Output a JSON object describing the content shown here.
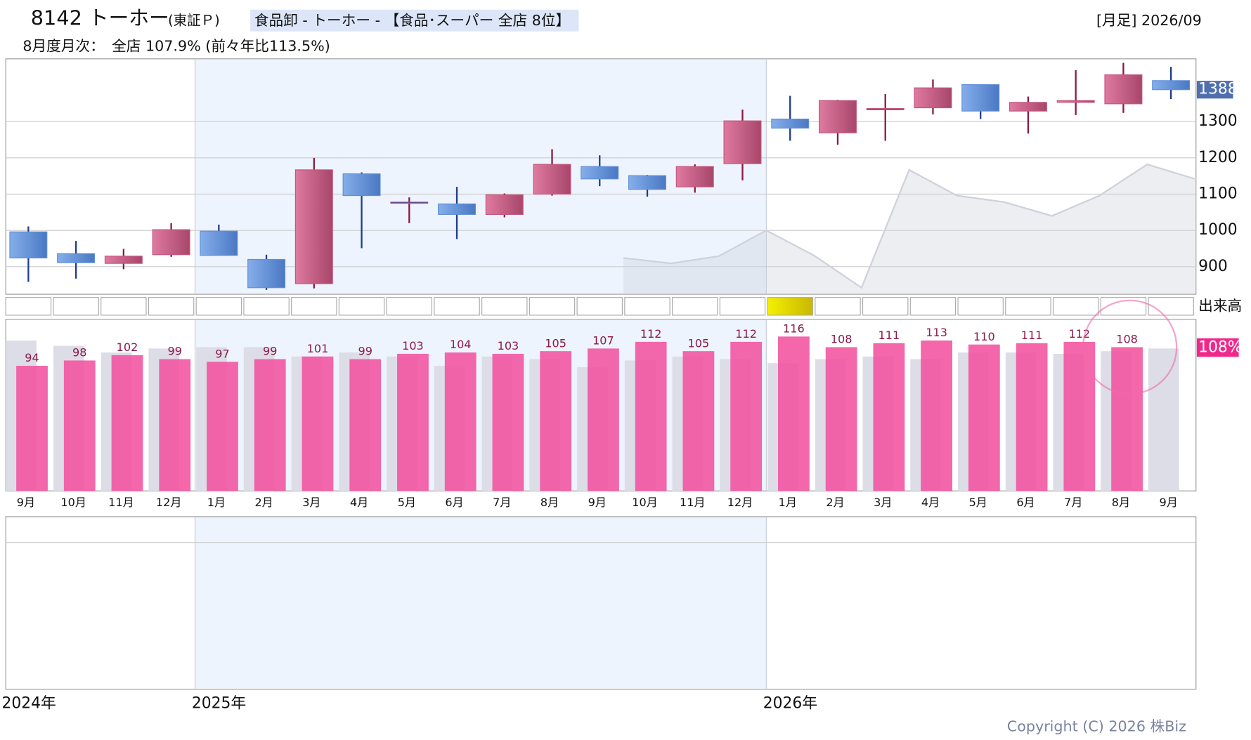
{
  "header": {
    "code_name": "8142 トーホー",
    "market": "(東証Ｐ)",
    "sector": "食品卸 - トーホー - 【食品･スーパー 全店 8位】",
    "period": "[月足] 2026/09",
    "monthly_note": "8月度月次：　全店 107.9% (前々年比113.5%)"
  },
  "chart_data": [
    {
      "type": "candlestick",
      "up_color": "#c4557d",
      "down_color": "#5f8fd8",
      "series": [
        {
          "open": [
            996,
            936,
            909,
            933,
            998,
            920,
            853,
            1156,
            1078,
            1073,
            1044,
            1100,
            1176,
            1151,
            1120,
            1184,
            1307,
            1269,
            1336,
            1338,
            1402,
            1329,
            1353,
            1349,
            1413
          ],
          "high": [
            1011,
            971,
            949,
            1020,
            1016,
            933,
            1200,
            1160,
            1091,
            1120,
            1102,
            1224,
            1207,
            1153,
            1182,
            1333,
            1371,
            1360,
            1376,
            1416,
            1402,
            1369,
            1442,
            1462,
            1451
          ],
          "low": [
            858,
            867,
            893,
            927,
            931,
            836,
            840,
            951,
            1020,
            976,
            1036,
            1096,
            1122,
            1093,
            1104,
            1138,
            1247,
            1236,
            1247,
            1320,
            1307,
            1267,
            1318,
            1324,
            1362
          ],
          "close": [
            924,
            911,
            929,
            1002,
            931,
            842,
            1167,
            1096,
            1078,
            1044,
            1098,
            1182,
            1142,
            1113,
            1176,
            1302,
            1282,
            1358,
            1336,
            1393,
            1329,
            1353,
            1358,
            1429,
            1388
          ]
        }
      ],
      "comparison": [
        924,
        909,
        929,
        1000,
        931,
        842,
        1167,
        1096,
        1078,
        1040,
        1096,
        1182,
        1142
      ],
      "last_price": 1388,
      "ylim": [
        824,
        1473
      ],
      "yticks": [
        900,
        1000,
        1100,
        1200,
        1300
      ],
      "grid": true
    },
    {
      "type": "bar",
      "categories": [
        "9月",
        "10月",
        "11月",
        "12月",
        "1月",
        "2月",
        "3月",
        "4月",
        "5月",
        "6月",
        "7月",
        "8月",
        "9月",
        "10月",
        "11月",
        "12月",
        "1月",
        "2月",
        "3月",
        "4月",
        "5月",
        "6月",
        "7月",
        "8月",
        "9月"
      ],
      "series": [
        {
          "color": "#dcdde6",
          "values": [
            113,
            109,
            104,
            107,
            108,
            108,
            101,
            104,
            101,
            94,
            101,
            99,
            93,
            98,
            101,
            99,
            96,
            99,
            101,
            99,
            104,
            104,
            103,
            105,
            107
          ]
        },
        {
          "color": "#f2529f",
          "values": [
            94,
            98,
            102,
            99,
            97,
            99,
            101,
            99,
            103,
            104,
            103,
            105,
            107,
            112,
            105,
            112,
            116,
            108,
            111,
            113,
            110,
            111,
            112,
            108,
            null
          ]
        }
      ],
      "last_value": {
        "value": 108,
        "label": "108%"
      },
      "ylim": [
        0,
        129
      ]
    }
  ],
  "volume_label": "出来高",
  "year_labels": [
    "2024年",
    "2025年",
    "2026年"
  ],
  "copyright": "Copyright (C) 2026 株Biz"
}
